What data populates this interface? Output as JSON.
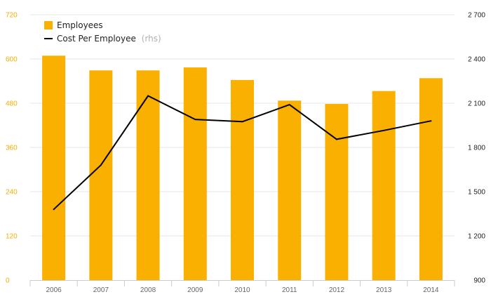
{
  "chart_data": {
    "type": "bar",
    "categories": [
      "2006",
      "2007",
      "2008",
      "2009",
      "2010",
      "2011",
      "2012",
      "2013",
      "2014"
    ],
    "series": [
      {
        "name": "Employees",
        "type": "bar",
        "axis": "left",
        "color": "#f9b000",
        "values": [
          609,
          569,
          569,
          577,
          543,
          487,
          478,
          513,
          548
        ]
      },
      {
        "name": "Cost Per Employee",
        "name_suffix": "(rhs)",
        "type": "line",
        "axis": "right",
        "color": "#000000",
        "values": [
          1380,
          1680,
          2150,
          1990,
          1975,
          2090,
          1855,
          1915,
          1980
        ]
      }
    ],
    "y_left": {
      "lim": [
        0,
        720
      ],
      "ticks": [
        0,
        120,
        240,
        360,
        480,
        600,
        720
      ],
      "tick_labels": [
        "0",
        "120",
        "240",
        "360",
        "480",
        "600",
        "720"
      ],
      "color": "#f5ae00"
    },
    "y_right": {
      "lim": [
        900,
        2700
      ],
      "ticks": [
        900,
        1200,
        1500,
        1800,
        2100,
        2400,
        2700
      ],
      "tick_labels": [
        "900",
        "1 200",
        "1 500",
        "1 800",
        "2 100",
        "2 400",
        "2 700"
      ],
      "color": "#222222"
    },
    "grid": "horizontal",
    "legend_position": "top-left",
    "title": "",
    "xlabel": "",
    "ylabel": ""
  }
}
